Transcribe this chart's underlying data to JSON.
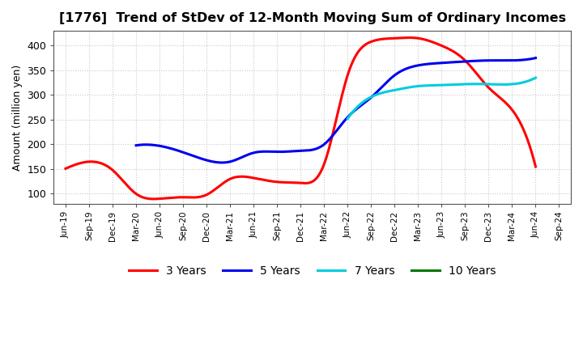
{
  "title": "[1776]  Trend of StDev of 12-Month Moving Sum of Ordinary Incomes",
  "ylabel": "Amount (million yen)",
  "ylim": [
    80,
    430
  ],
  "yticks": [
    100,
    150,
    200,
    250,
    300,
    350,
    400
  ],
  "background_color": "#ffffff",
  "grid_color": "#c8c8c8",
  "x_labels": [
    "Jun-19",
    "Sep-19",
    "Dec-19",
    "Mar-20",
    "Jun-20",
    "Sep-20",
    "Dec-20",
    "Mar-21",
    "Jun-21",
    "Sep-21",
    "Dec-21",
    "Mar-22",
    "Jun-22",
    "Sep-22",
    "Dec-22",
    "Mar-23",
    "Jun-23",
    "Sep-23",
    "Dec-23",
    "Mar-24",
    "Jun-24",
    "Sep-24"
  ],
  "series_3y_color": "#ff0000",
  "series_5y_color": "#0000ee",
  "series_7y_color": "#00ccdd",
  "series_10y_color": "#007700",
  "series_3y_x": [
    0,
    1,
    2,
    3,
    4,
    5,
    6,
    7,
    8,
    9,
    10,
    11,
    12,
    13,
    14,
    15,
    16,
    17,
    18,
    19,
    20
  ],
  "series_3y_y": [
    151,
    165,
    148,
    100,
    90,
    93,
    98,
    130,
    132,
    124,
    122,
    160,
    340,
    408,
    415,
    415,
    400,
    370,
    315,
    270,
    155
  ],
  "series_5y_x": [
    3,
    4,
    5,
    6,
    7,
    8,
    9,
    10,
    11,
    12,
    13,
    14,
    15,
    16,
    17,
    18,
    19,
    20
  ],
  "series_5y_y": [
    198,
    197,
    184,
    168,
    165,
    183,
    185,
    187,
    200,
    255,
    295,
    340,
    360,
    365,
    368,
    370,
    370,
    375
  ],
  "series_7y_x": [
    12,
    13,
    14,
    15,
    16,
    17,
    18,
    19,
    20
  ],
  "series_7y_y": [
    252,
    296,
    310,
    318,
    320,
    322,
    322,
    322,
    335
  ],
  "series_10y_x": [],
  "series_10y_y": []
}
